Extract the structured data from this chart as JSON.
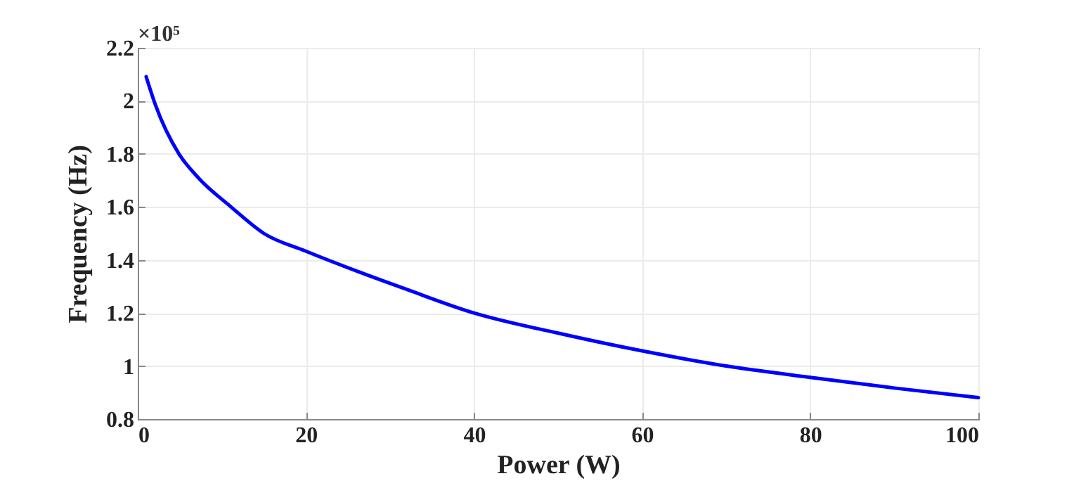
{
  "chart_data": {
    "type": "line",
    "xlabel": "Power (W)",
    "ylabel": "Frequency (Hz)",
    "annotations": [
      "×10⁵"
    ],
    "x": [
      1,
      2.1,
      4.9,
      7.2,
      11.1,
      15,
      20,
      26.3,
      31.9,
      40,
      50,
      60,
      70,
      80,
      90,
      100
    ],
    "series": [
      {
        "color": "#0000ff",
        "values": [
          2.091,
          1.985,
          1.8,
          1.71,
          1.6,
          1.5,
          1.433,
          1.355,
          1.29,
          1.2,
          1.124,
          1.057,
          1.0,
          0.957,
          0.917,
          0.881
        ]
      }
    ],
    "xlim": [
      0,
      100
    ],
    "xticks": [
      0,
      20,
      40,
      60,
      80,
      100
    ],
    "ylim": [
      0.8,
      2.2
    ],
    "yticks": [
      0.8,
      1,
      1.2,
      1.4,
      1.6,
      1.8,
      2,
      2.2
    ],
    "grid": true,
    "marker": "none",
    "line_style": "solid"
  }
}
